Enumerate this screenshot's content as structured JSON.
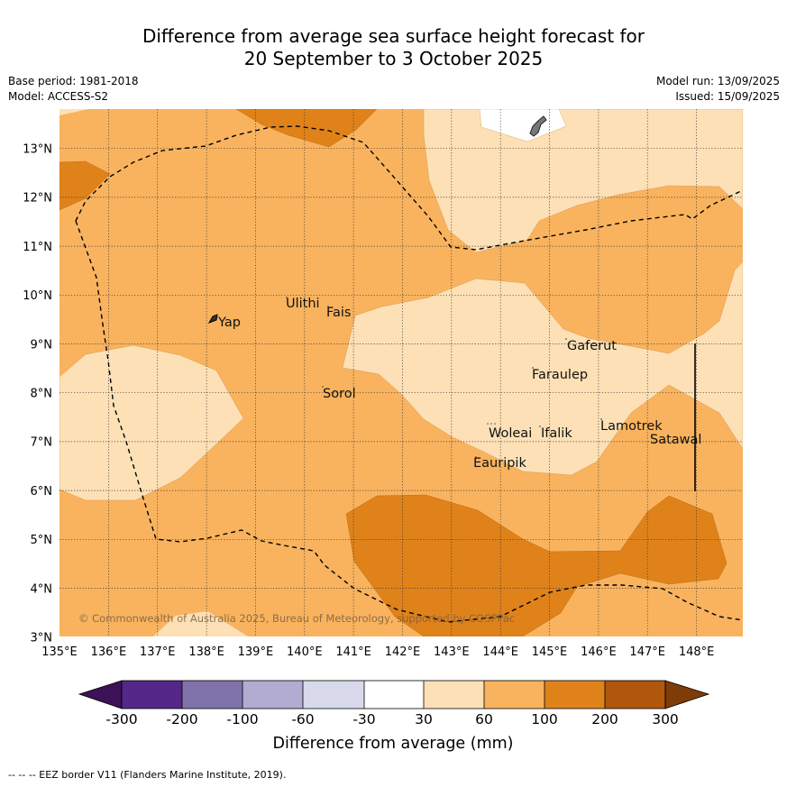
{
  "title": {
    "line1": "Difference from average sea surface height forecast for",
    "line2": "20 September to 3 October 2025"
  },
  "meta": {
    "base_period": "Base period: 1981-2018",
    "model": "Model: ACCESS-S2",
    "model_run": "Model run: 13/09/2025",
    "issued": "Issued: 15/09/2025"
  },
  "map": {
    "lon_labels": [
      "135°E",
      "136°E",
      "137°E",
      "138°E",
      "139°E",
      "140°E",
      "141°E",
      "142°E",
      "143°E",
      "144°E",
      "145°E",
      "146°E",
      "147°E",
      "148°E"
    ],
    "lat_labels": [
      "13°N",
      "12°N",
      "11°N",
      "10°N",
      "9°N",
      "8°N",
      "7°N",
      "6°N",
      "5°N",
      "4°N",
      "3°N"
    ],
    "places": [
      "Yap",
      "Ulithi",
      "Fais",
      "Gaferut",
      "Faraulep",
      "Sorol",
      "Woleai",
      "Ifalik",
      "Lamotrek",
      "Satawal",
      "Eauripik"
    ],
    "copyright": "© Commonwealth of Australia 2025, Bureau of Meteorology, supported by COSPPac",
    "colors": {
      "c30_60": "#fde0b6",
      "c60_100": "#f9b35e",
      "c100_200": "#e0821a",
      "c200_300": "#b0570b",
      "land": "#777777",
      "white": "#ffffff"
    }
  },
  "colorbar": {
    "ticks": [
      "-300",
      "-200",
      "-100",
      "-60",
      "-30",
      "30",
      "60",
      "100",
      "200",
      "300"
    ],
    "colors": [
      "#3d1156",
      "#542788",
      "#8073ac",
      "#b2abd2",
      "#d8daeb",
      "#ffffff",
      "#fde0b6",
      "#f9b35e",
      "#e0821a",
      "#b0570b",
      "#7f3b08"
    ],
    "label": "Difference from average (mm)"
  },
  "footer": "--  --  -- EEZ border V11 (Flanders Marine Institute, 2019)."
}
